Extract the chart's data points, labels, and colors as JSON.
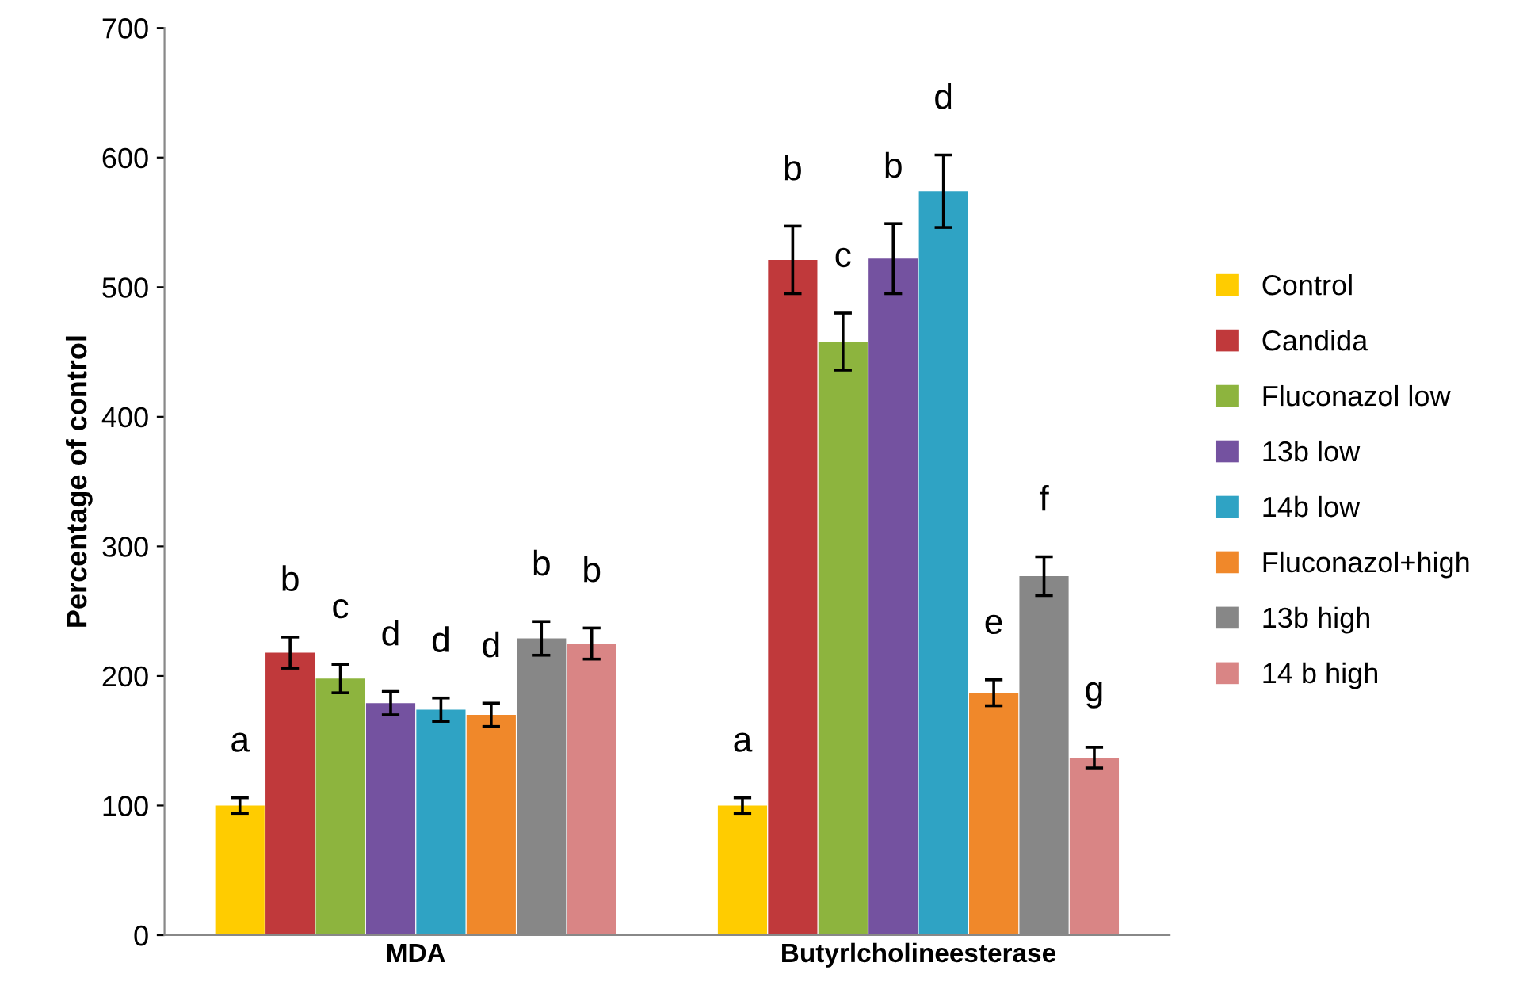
{
  "chart_data": {
    "type": "bar",
    "ylabel": "Percentage of control",
    "categories": [
      "MDA",
      "Butyrlcholineesterase"
    ],
    "series": [
      {
        "name": "Control",
        "color": "#ffcc00",
        "values": [
          100,
          100
        ],
        "errors": [
          6,
          6
        ],
        "value_labels": [
          "a",
          "a"
        ]
      },
      {
        "name": "Candida",
        "color": "#c0393b",
        "values": [
          218,
          521
        ],
        "errors": [
          12,
          26
        ],
        "value_labels": [
          "b",
          "b"
        ]
      },
      {
        "name": "Fluconazol low",
        "color": "#8db43e",
        "values": [
          198,
          458
        ],
        "errors": [
          11,
          22
        ],
        "value_labels": [
          "c",
          "c"
        ]
      },
      {
        "name": "13b low",
        "color": "#7452a0",
        "values": [
          179,
          522
        ],
        "errors": [
          9,
          27
        ],
        "value_labels": [
          "d",
          "b"
        ]
      },
      {
        "name": "14b low",
        "color": "#2fa3c4",
        "values": [
          174,
          574
        ],
        "errors": [
          9,
          28
        ],
        "value_labels": [
          "d",
          "d"
        ]
      },
      {
        "name": "Fluconazol+high",
        "color": "#f0882a",
        "values": [
          170,
          187
        ],
        "errors": [
          9,
          10
        ],
        "value_labels": [
          "d",
          "e"
        ]
      },
      {
        "name": "13b high",
        "color": "#878787",
        "values": [
          229,
          277
        ],
        "errors": [
          13,
          15
        ],
        "value_labels": [
          "b",
          "f"
        ]
      },
      {
        "name": "14 b high",
        "color": "#d98585",
        "values": [
          225,
          137
        ],
        "errors": [
          12,
          8
        ],
        "value_labels": [
          "b",
          "g"
        ]
      }
    ],
    "ylim": [
      0,
      700
    ],
    "yticks": [
      0,
      100,
      200,
      300,
      400,
      500,
      600,
      700
    ],
    "grid": false,
    "legend": "right"
  }
}
